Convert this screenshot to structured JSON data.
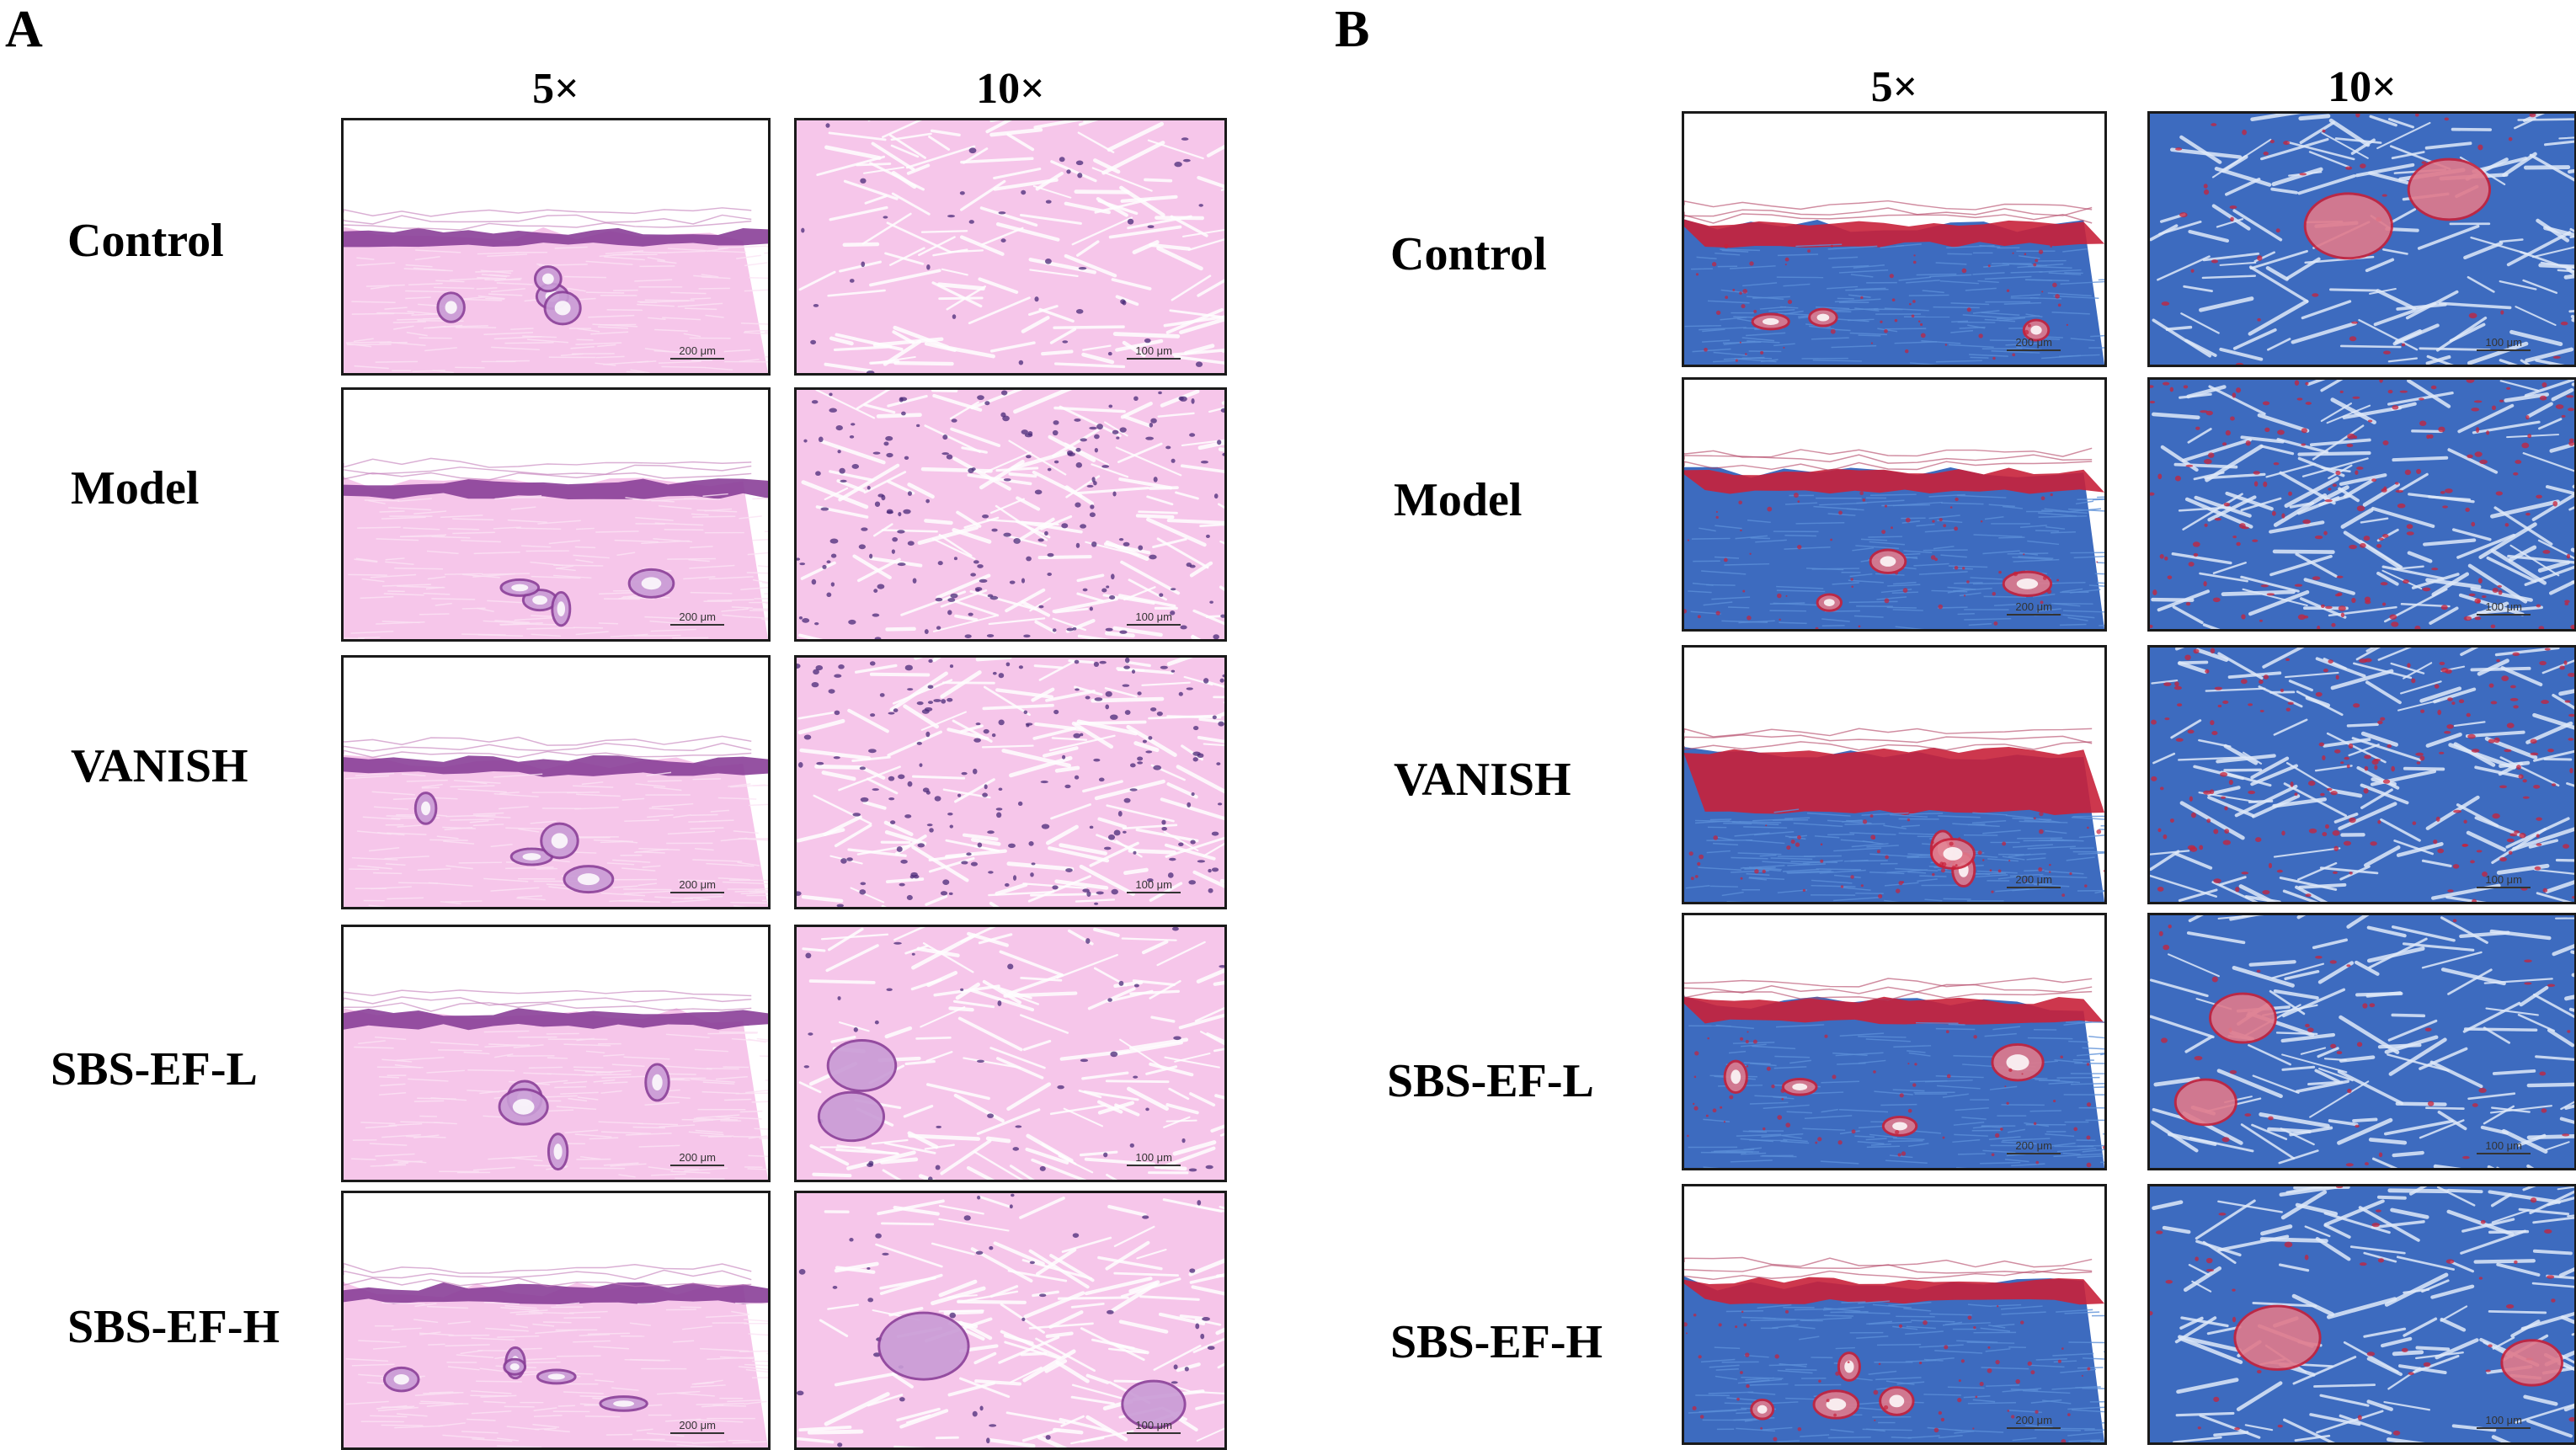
{
  "panels": [
    {
      "letter": "A",
      "stain": "he",
      "columns": [
        "5×",
        "10×"
      ],
      "rows": [
        {
          "label": "Control",
          "scale_5x": "200 μm",
          "scale_10x": "100 μm"
        },
        {
          "label": "Model",
          "scale_5x": "200 μm",
          "scale_10x": "100 μm"
        },
        {
          "label": "VANISH",
          "scale_5x": "200 μm",
          "scale_10x": "100 μm"
        },
        {
          "label": "SBS-EF-L",
          "scale_5x": "200 μm",
          "scale_10x": "100 μm"
        },
        {
          "label": "SBS-EF-H",
          "scale_5x": "200 μm",
          "scale_10x": "100 μm"
        }
      ]
    },
    {
      "letter": "B",
      "stain": "masson",
      "columns": [
        "5×",
        "10×"
      ],
      "rows": [
        {
          "label": "Control",
          "scale_5x": "200 μm",
          "scale_10x": "100 μm"
        },
        {
          "label": "Model",
          "scale_5x": "200 μm",
          "scale_10x": "100 μm"
        },
        {
          "label": "VANISH",
          "scale_5x": "200 μm",
          "scale_10x": "100 μm"
        },
        {
          "label": "SBS-EF-L",
          "scale_5x": "200 μm",
          "scale_10x": "100 μm"
        },
        {
          "label": "SBS-EF-H",
          "scale_5x": "200 μm",
          "scale_10x": "100 μm"
        }
      ]
    }
  ],
  "colors": {
    "he_background": "#f6c6ea",
    "he_tissue": "#e58ed3",
    "he_epidermis": "#8a3f98",
    "he_nuclei": "#4a2a78",
    "masson_background": "#3d6bbf",
    "masson_collagen": "#5b8fd8",
    "masson_keratin": "#c8213a",
    "masson_muscle": "#e07a8c",
    "slide_blank": "#ffffff"
  }
}
